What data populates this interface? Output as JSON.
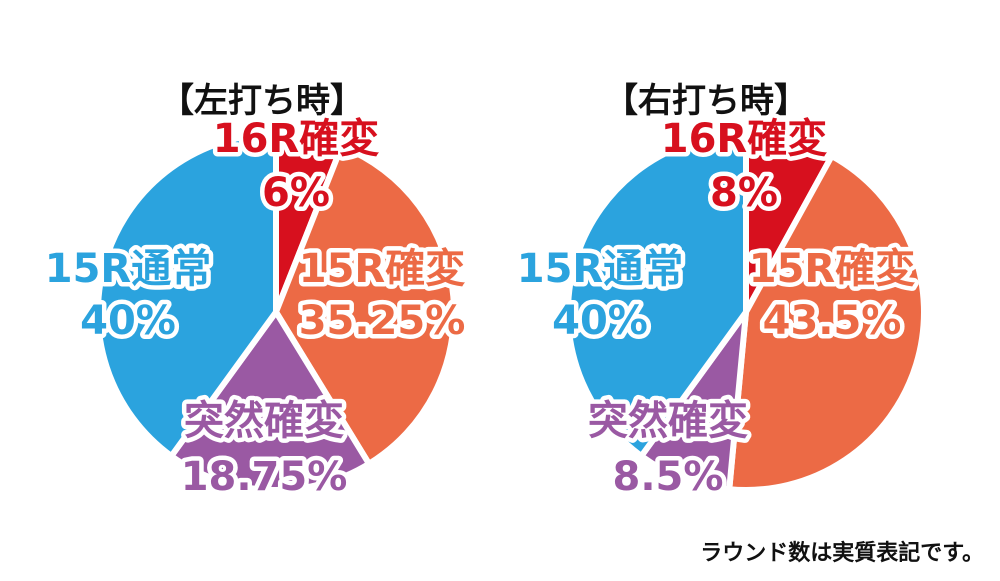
{
  "chart_data": [
    {
      "type": "pie",
      "title": "【左打ち時】",
      "slices": [
        {
          "name": "16R確変",
          "value": 6,
          "label": "6%",
          "color": "#d7101e"
        },
        {
          "name": "15R確変",
          "value": 35.25,
          "label": "35.25%",
          "color": "#ec6a45"
        },
        {
          "name": "突然確変",
          "value": 18.75,
          "label": "18.75%",
          "color": "#9a59a3"
        },
        {
          "name": "15R通常",
          "value": 40,
          "label": "40%",
          "color": "#2ba3de"
        }
      ]
    },
    {
      "type": "pie",
      "title": "【右打ち時】",
      "slices": [
        {
          "name": "16R確変",
          "value": 8,
          "label": "8%",
          "color": "#d7101e"
        },
        {
          "name": "15R確変",
          "value": 43.5,
          "label": "43.5%",
          "color": "#ec6a45"
        },
        {
          "name": "突然確変",
          "value": 8.5,
          "label": "8.5%",
          "color": "#9a59a3"
        },
        {
          "name": "15R通常",
          "value": 40,
          "label": "40%",
          "color": "#2ba3de"
        }
      ]
    }
  ],
  "footnote": "ラウンド数は実質表記です。"
}
